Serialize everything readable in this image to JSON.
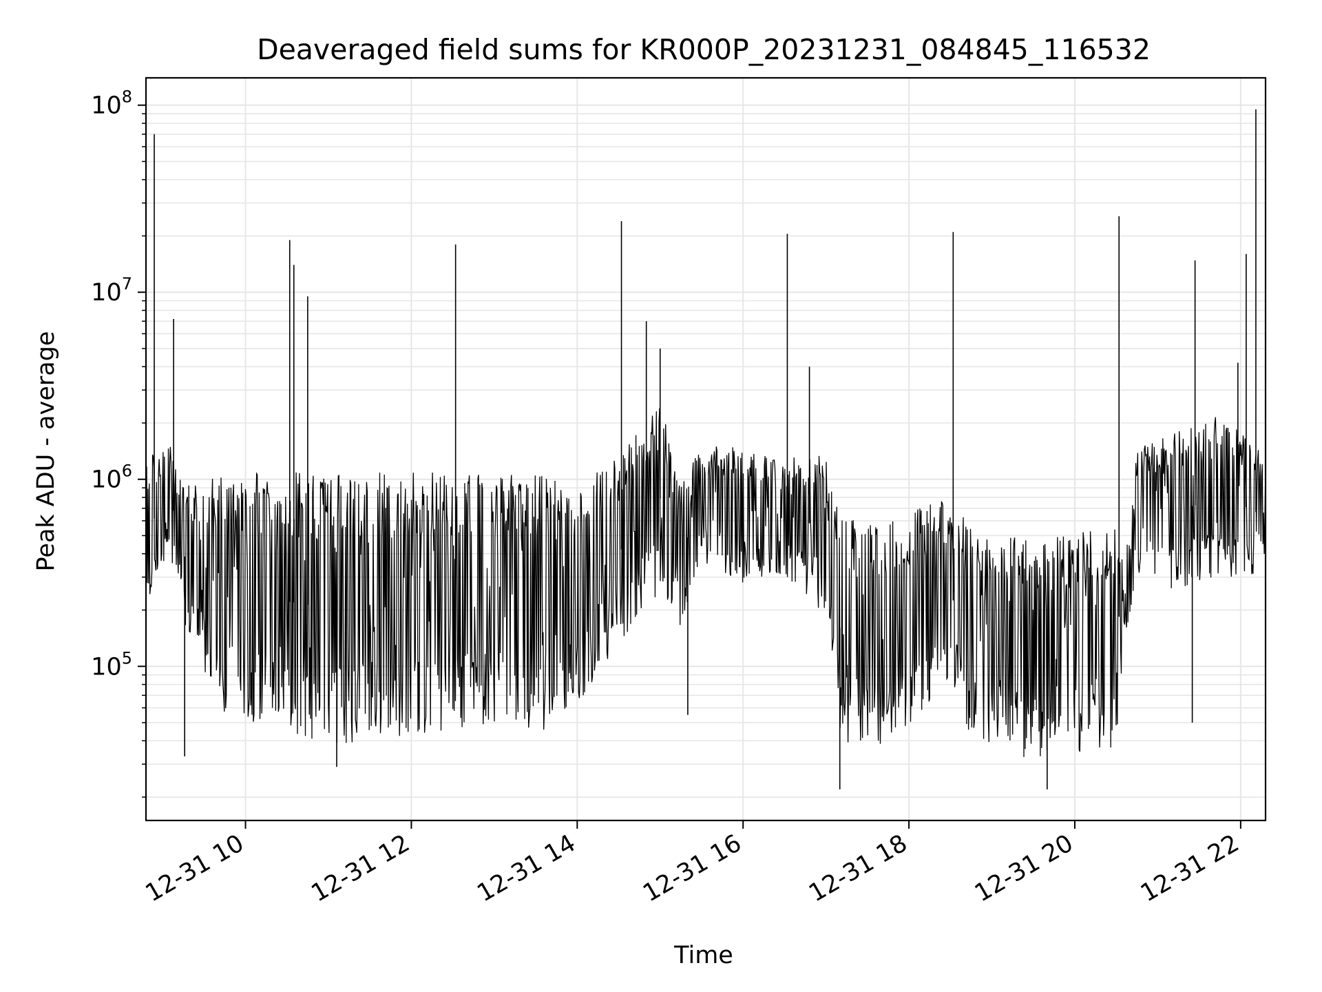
{
  "chart_data": {
    "type": "line",
    "title": "Deaveraged field sums for KR000P_20231231_084845_116532",
    "xlabel": "Time",
    "ylabel": "Peak ADU - average",
    "y_scale": "log",
    "ylim": [
      15000,
      140000000
    ],
    "xlim": [
      "2023-12-31 08:48",
      "2023-12-31 22:18"
    ],
    "grid": true,
    "line_color": "#000000",
    "grid_color": "#e6e6e6",
    "x_ticks": [
      {
        "value": "2023-12-31 10:00",
        "label": "12-31 10"
      },
      {
        "value": "2023-12-31 12:00",
        "label": "12-31 12"
      },
      {
        "value": "2023-12-31 14:00",
        "label": "12-31 14"
      },
      {
        "value": "2023-12-31 16:00",
        "label": "12-31 16"
      },
      {
        "value": "2023-12-31 18:00",
        "label": "12-31 18"
      },
      {
        "value": "2023-12-31 20:00",
        "label": "12-31 20"
      },
      {
        "value": "2023-12-31 22:00",
        "label": "12-31 22"
      }
    ],
    "y_ticks": [
      {
        "value": 100000,
        "base": "10",
        "exp": "5"
      },
      {
        "value": 1000000,
        "base": "10",
        "exp": "6"
      },
      {
        "value": 10000000,
        "base": "10",
        "exp": "7"
      },
      {
        "value": 100000000,
        "base": "10",
        "exp": "8"
      }
    ],
    "series": [
      {
        "color": "#000000",
        "envelope": [
          {
            "t": "2023-12-31 08:48",
            "low": 200000,
            "high": 1300000
          },
          {
            "t": "2023-12-31 09:05",
            "low": 400000,
            "high": 1600000
          },
          {
            "t": "2023-12-31 09:15",
            "low": 170000,
            "high": 900000
          },
          {
            "t": "2023-12-31 09:30",
            "low": 90000,
            "high": 1000000
          },
          {
            "t": "2023-12-31 09:45",
            "low": 55000,
            "high": 1050000
          },
          {
            "t": "2023-12-31 10:30",
            "low": 45000,
            "high": 1100000
          },
          {
            "t": "2023-12-31 11:00",
            "low": 38000,
            "high": 1100000
          },
          {
            "t": "2023-12-31 12:00",
            "low": 42000,
            "high": 1100000
          },
          {
            "t": "2023-12-31 13:00",
            "low": 50000,
            "high": 1100000
          },
          {
            "t": "2023-12-31 13:40",
            "low": 45000,
            "high": 1050000
          },
          {
            "t": "2023-12-31 14:00",
            "low": 60000,
            "high": 900000
          },
          {
            "t": "2023-12-31 14:30",
            "low": 120000,
            "high": 1300000
          },
          {
            "t": "2023-12-31 15:00",
            "low": 250000,
            "high": 2500000
          },
          {
            "t": "2023-12-31 15:15",
            "low": 150000,
            "high": 900000
          },
          {
            "t": "2023-12-31 15:30",
            "low": 350000,
            "high": 1500000
          },
          {
            "t": "2023-12-31 16:00",
            "low": 280000,
            "high": 1500000
          },
          {
            "t": "2023-12-31 16:30",
            "low": 300000,
            "high": 1200000
          },
          {
            "t": "2023-12-31 16:55",
            "low": 200000,
            "high": 1600000
          },
          {
            "t": "2023-12-31 17:10",
            "low": 40000,
            "high": 650000
          },
          {
            "t": "2023-12-31 17:45",
            "low": 35000,
            "high": 600000
          },
          {
            "t": "2023-12-31 18:30",
            "low": 70000,
            "high": 800000
          },
          {
            "t": "2023-12-31 18:45",
            "low": 40000,
            "high": 550000
          },
          {
            "t": "2023-12-31 19:30",
            "low": 30000,
            "high": 500000
          },
          {
            "t": "2023-12-31 20:30",
            "low": 35000,
            "high": 550000
          },
          {
            "t": "2023-12-31 20:40",
            "low": 180000,
            "high": 450000
          },
          {
            "t": "2023-12-31 20:45",
            "low": 300000,
            "high": 1500000
          },
          {
            "t": "2023-12-31 21:15",
            "low": 250000,
            "high": 1800000
          },
          {
            "t": "2023-12-31 21:45",
            "low": 300000,
            "high": 2200000
          },
          {
            "t": "2023-12-31 22:18",
            "low": 300000,
            "high": 1300000
          }
        ],
        "spikes": [
          {
            "t": "2023-12-31 08:54",
            "value": 70000000
          },
          {
            "t": "2023-12-31 09:08",
            "value": 7200000
          },
          {
            "t": "2023-12-31 09:16",
            "value": 33000
          },
          {
            "t": "2023-12-31 10:32",
            "value": 19000000
          },
          {
            "t": "2023-12-31 10:35",
            "value": 14000000
          },
          {
            "t": "2023-12-31 10:45",
            "value": 9500000
          },
          {
            "t": "2023-12-31 11:06",
            "value": 29000
          },
          {
            "t": "2023-12-31 12:32",
            "value": 18000000
          },
          {
            "t": "2023-12-31 14:32",
            "value": 24000000
          },
          {
            "t": "2023-12-31 14:50",
            "value": 7000000
          },
          {
            "t": "2023-12-31 15:00",
            "value": 5000000
          },
          {
            "t": "2023-12-31 15:20",
            "value": 55000
          },
          {
            "t": "2023-12-31 16:32",
            "value": 20500000
          },
          {
            "t": "2023-12-31 16:48",
            "value": 4000000
          },
          {
            "t": "2023-12-31 17:10",
            "value": 22000
          },
          {
            "t": "2023-12-31 18:32",
            "value": 21000000
          },
          {
            "t": "2023-12-31 19:40",
            "value": 22000
          },
          {
            "t": "2023-12-31 20:32",
            "value": 25500000
          },
          {
            "t": "2023-12-31 21:27",
            "value": 14800000
          },
          {
            "t": "2023-12-31 21:25",
            "value": 50000
          },
          {
            "t": "2023-12-31 21:58",
            "value": 4200000
          },
          {
            "t": "2023-12-31 22:04",
            "value": 16000000
          },
          {
            "t": "2023-12-31 22:11",
            "value": 95000000
          }
        ]
      }
    ]
  }
}
